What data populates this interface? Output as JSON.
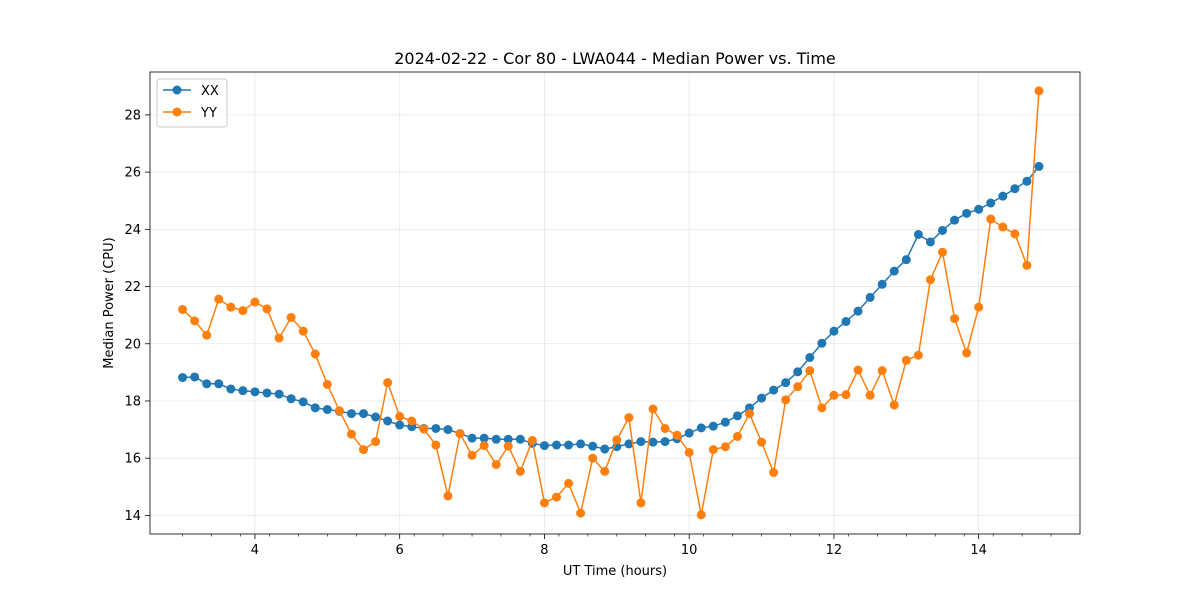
{
  "chart_data": {
    "type": "line",
    "title": "2024-02-22 - Cor 80 - LWA044 - Median Power vs. Time",
    "xlabel": "UT Time (hours)",
    "ylabel": "Median Power (CPU)",
    "xlim": [
      2.55,
      15.4
    ],
    "ylim": [
      13.35,
      29.5
    ],
    "x_ticks": [
      4,
      6,
      8,
      10,
      12,
      14
    ],
    "x_tick_labels": [
      "4",
      "6",
      "8",
      "10",
      "12",
      "14"
    ],
    "y_ticks": [
      14,
      16,
      18,
      20,
      22,
      24,
      26,
      28
    ],
    "y_tick_labels": [
      "14",
      "16",
      "18",
      "20",
      "22",
      "24",
      "26",
      "28"
    ],
    "grid": true,
    "legend_position": "top-left",
    "x": [
      3.0,
      3.1667,
      3.3333,
      3.5,
      3.6667,
      3.8333,
      4.0,
      4.1667,
      4.3333,
      4.5,
      4.6667,
      4.8333,
      5.0,
      5.1667,
      5.3333,
      5.5,
      5.6667,
      5.8333,
      6.0,
      6.1667,
      6.3333,
      6.5,
      6.6667,
      6.8333,
      7.0,
      7.1667,
      7.3333,
      7.5,
      7.6667,
      7.8333,
      8.0,
      8.1667,
      8.3333,
      8.5,
      8.6667,
      8.8333,
      9.0,
      9.1667,
      9.3333,
      9.5,
      9.6667,
      9.8333,
      10.0,
      10.1667,
      10.3333,
      10.5,
      10.6667,
      10.8333,
      11.0,
      11.1667,
      11.3333,
      11.5,
      11.6667,
      11.8333,
      12.0,
      12.1667,
      12.3333,
      12.5,
      12.6667,
      12.8333,
      13.0,
      13.1667,
      13.3333,
      13.5,
      13.6667,
      13.8333,
      14.0,
      14.1667,
      14.3333,
      14.5,
      14.6667,
      14.8333
    ],
    "series": [
      {
        "name": "XX",
        "color": "#1f77b4",
        "values": [
          18.82,
          18.84,
          18.6,
          18.6,
          18.42,
          18.36,
          18.32,
          18.28,
          18.24,
          18.08,
          17.97,
          17.76,
          17.7,
          17.64,
          17.56,
          17.56,
          17.44,
          17.3,
          17.16,
          17.1,
          17.04,
          17.04,
          17.0,
          16.86,
          16.7,
          16.7,
          16.66,
          16.66,
          16.66,
          16.52,
          16.44,
          16.46,
          16.46,
          16.5,
          16.42,
          16.32,
          16.4,
          16.5,
          16.58,
          16.56,
          16.58,
          16.68,
          16.88,
          17.06,
          17.12,
          17.26,
          17.48,
          17.76,
          18.1,
          18.38,
          18.64,
          19.02,
          19.52,
          20.02,
          20.44,
          20.78,
          21.14,
          21.62,
          22.08,
          22.54,
          22.94,
          23.82,
          23.56,
          23.96,
          24.32,
          24.56,
          24.7,
          24.92,
          25.16,
          25.42,
          25.68,
          26.2
        ]
      },
      {
        "name": "YY",
        "color": "#ff7f0e",
        "values": [
          21.2,
          20.8,
          20.3,
          21.56,
          21.28,
          21.16,
          21.46,
          21.22,
          20.2,
          20.92,
          20.44,
          19.64,
          18.58,
          17.66,
          16.84,
          16.3,
          16.58,
          18.64,
          17.46,
          17.3,
          17.02,
          16.46,
          14.68,
          16.86,
          16.1,
          16.44,
          15.78,
          16.42,
          15.54,
          16.62,
          14.44,
          14.64,
          15.12,
          14.08,
          16.0,
          15.54,
          16.64,
          17.42,
          14.44,
          17.72,
          17.04,
          16.8,
          16.2,
          14.02,
          16.3,
          16.4,
          16.76,
          17.56,
          16.56,
          15.5,
          18.04,
          18.5,
          19.06,
          17.76,
          18.2,
          18.22,
          19.08,
          18.2,
          19.06,
          17.86,
          19.42,
          19.6,
          22.24,
          23.2,
          20.88,
          19.68,
          21.28,
          24.36,
          24.08,
          23.84,
          22.74,
          28.84
        ]
      }
    ]
  }
}
